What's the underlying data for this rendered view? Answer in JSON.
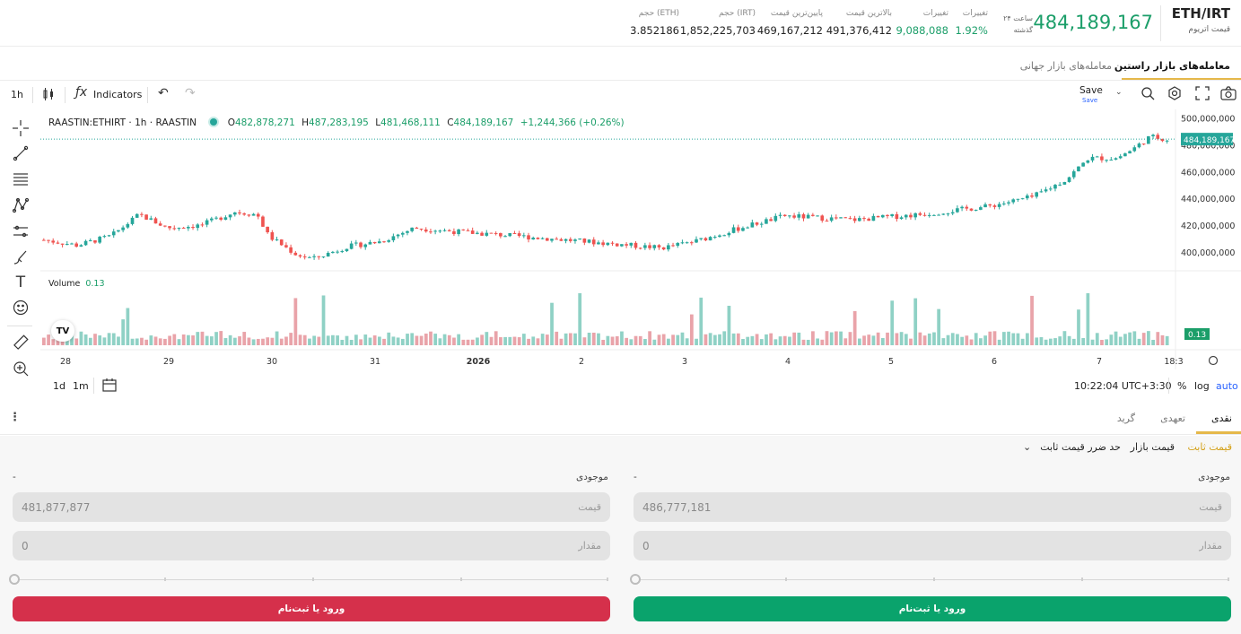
{
  "header": {
    "symbol": "ETH/IRT",
    "name": "قیمت اتریوم",
    "price": "484,189,167",
    "h24_l1": "۲۴ ساعت",
    "h24_l2": "گذشته",
    "stats": [
      {
        "label": "تغییرات",
        "value": "1.92%"
      },
      {
        "label": "تغییرات",
        "value": "9,088,088"
      },
      {
        "label": "بالاترین قیمت",
        "value": "491,376,412"
      },
      {
        "label": "پایین‌ترین قیمت",
        "value": "469,167,212"
      },
      {
        "label": "حجم (IRT)",
        "value": "1,852,225,703"
      },
      {
        "label": "حجم (ETH)",
        "value": "3.852186"
      }
    ]
  },
  "market_tabs": {
    "active": "معامله‌های بازار راستین",
    "other": "معامله‌های بازار جهانی"
  },
  "toolbar": {
    "interval": "1h",
    "indicators": "Indicators",
    "save": "Save",
    "save_sub": "Save"
  },
  "legend": {
    "symbol": "RAASTIN:ETHIRT · 1h · RAASTIN",
    "o_label": "O",
    "o": "482,878,271",
    "h_label": "H",
    "h": "487,283,195",
    "l_label": "L",
    "l": "481,468,111",
    "c_label": "C",
    "c": "484,189,167",
    "chg": "+1,244,366 (+0.26%)"
  },
  "volume": {
    "label": "Volume",
    "value": "0.13"
  },
  "bottom_bar": {
    "r1": "1d",
    "r2": "1m",
    "time": "10:22:04 UTC+3:30",
    "pct": "%",
    "log": "log",
    "auto": "auto"
  },
  "chart_data": {
    "type": "candlestick",
    "symbol": "RAASTIN:ETHIRT",
    "interval": "1h",
    "x_ticks": [
      "28",
      "29",
      "30",
      "31",
      "2026",
      "2",
      "3",
      "4",
      "5",
      "6",
      "7",
      "18:3"
    ],
    "y_ticks": [
      "500,000,000",
      "480,000,000",
      "460,000,000",
      "440,000,000",
      "420,000,000",
      "400,000,000"
    ],
    "ylim": [
      386000000,
      505000000
    ],
    "last_price": "484,189,167",
    "last_volume": "0.13",
    "close_path": [
      [
        0,
        409000000
      ],
      [
        0.03,
        405000000
      ],
      [
        0.06,
        412000000
      ],
      [
        0.085,
        428000000
      ],
      [
        0.11,
        418000000
      ],
      [
        0.14,
        420000000
      ],
      [
        0.17,
        430000000
      ],
      [
        0.19,
        428000000
      ],
      [
        0.2,
        412000000
      ],
      [
        0.225,
        398000000
      ],
      [
        0.24,
        395000000
      ],
      [
        0.27,
        404000000
      ],
      [
        0.3,
        408000000
      ],
      [
        0.33,
        418000000
      ],
      [
        0.37,
        415000000
      ],
      [
        0.42,
        412000000
      ],
      [
        0.48,
        408000000
      ],
      [
        0.55,
        403000000
      ],
      [
        0.58,
        408000000
      ],
      [
        0.62,
        418000000
      ],
      [
        0.66,
        427000000
      ],
      [
        0.72,
        424000000
      ],
      [
        0.78,
        428000000
      ],
      [
        0.84,
        434000000
      ],
      [
        0.88,
        441000000
      ],
      [
        0.91,
        454000000
      ],
      [
        0.93,
        470000000
      ],
      [
        0.955,
        470000000
      ],
      [
        0.97,
        477000000
      ],
      [
        0.985,
        486000000
      ],
      [
        1.0,
        484000000
      ]
    ]
  },
  "order": {
    "tabs": [
      "نقدی",
      "تعهدی",
      "گرید"
    ],
    "types": [
      "قیمت ثابت",
      "قیمت بازار",
      "حد ضرر قیمت ثابت"
    ],
    "available_label": "موجودی",
    "available_value": "-",
    "buy": {
      "price": "486,777,181",
      "amount": "0",
      "button": "ورود یا ثبت‌نام"
    },
    "sell": {
      "price": "481,877,877",
      "amount": "0",
      "button": "ورود یا ثبت‌نام"
    },
    "price_label": "قیمت",
    "amount_label": "مقدار"
  },
  "colors": {
    "up": "#26a69a",
    "down": "#ef5350",
    "buy": "#0aa36c",
    "sell": "#d5304b",
    "accent": "#e5b84a"
  }
}
